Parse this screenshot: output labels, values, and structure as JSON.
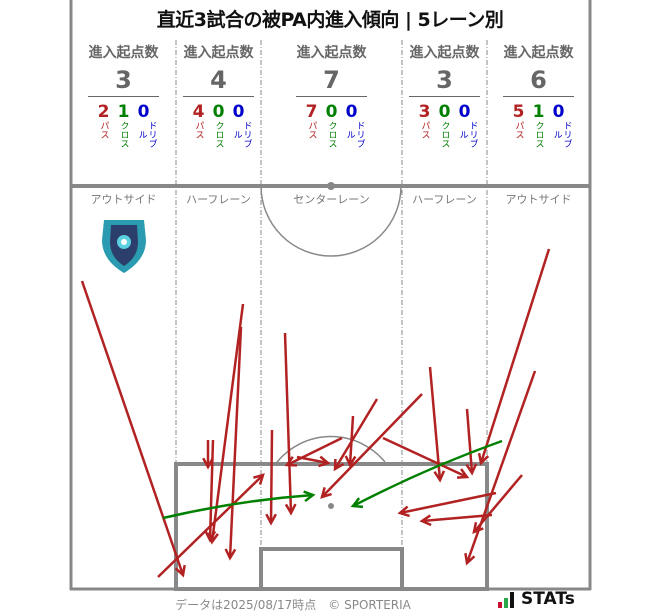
{
  "title": "直近3試合の被PA内進入傾向 | 5レーン別",
  "colors": {
    "pass": "#b22222",
    "cross": "#008000",
    "dribble": "#0000cc",
    "pitch_line": "#888888"
  },
  "chart_data": {
    "type": "pitch-arrows",
    "title": "直近3試合の被PA内進入傾向 | 5レーン別",
    "lanes": [
      {
        "name": "アウトサイド",
        "label": "進入起点数",
        "total": "3",
        "pass": "2",
        "cross": "1",
        "dribble": "0"
      },
      {
        "name": "ハーフレーン",
        "label": "進入起点数",
        "total": "4",
        "pass": "4",
        "cross": "0",
        "dribble": "0"
      },
      {
        "name": "センターレーン",
        "label": "進入起点数",
        "total": "7",
        "pass": "7",
        "cross": "0",
        "dribble": "0"
      },
      {
        "name": "ハーフレーン",
        "label": "進入起点数",
        "total": "3",
        "pass": "3",
        "cross": "0",
        "dribble": "0"
      },
      {
        "name": "アウトサイド",
        "label": "進入起点数",
        "total": "6",
        "pass": "5",
        "cross": "1",
        "dribble": "0"
      }
    ],
    "legend": {
      "pass": "パス",
      "cross": "クロス",
      "dribble": "ドリブル"
    }
  },
  "team_logo": "team-crest",
  "footer": {
    "note": "データは2025/08/17時点　© SPORTERIA",
    "brand": "STATs"
  }
}
